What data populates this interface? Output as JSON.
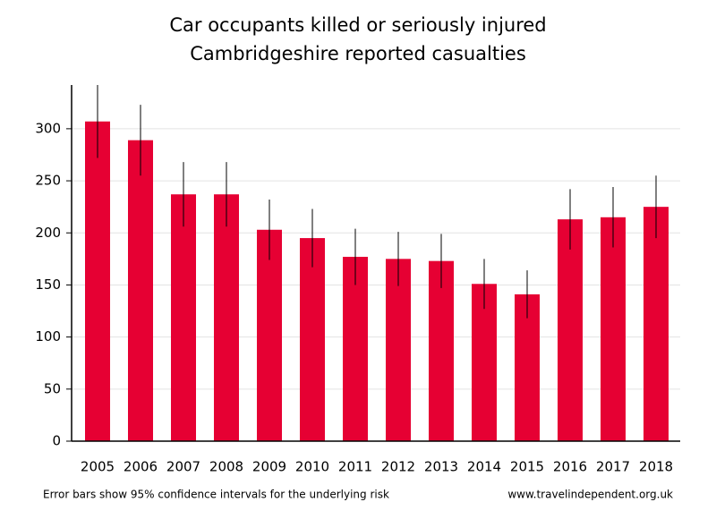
{
  "chart_data": {
    "type": "bar",
    "title": "Car occupants killed or seriously injured",
    "subtitle": "Cambridgeshire reported casualties",
    "categories": [
      "2005",
      "2006",
      "2007",
      "2008",
      "2009",
      "2010",
      "2011",
      "2012",
      "2013",
      "2014",
      "2015",
      "2016",
      "2017",
      "2018"
    ],
    "values": [
      307,
      289,
      237,
      237,
      203,
      195,
      177,
      175,
      173,
      151,
      141,
      213,
      215,
      225
    ],
    "errors": [
      35,
      34,
      31,
      31,
      29,
      28,
      27,
      26,
      26,
      24,
      23,
      29,
      29,
      30
    ],
    "color": "#e60033",
    "ylim": [
      0,
      342
    ],
    "yticks": [
      0,
      50,
      100,
      150,
      200,
      250,
      300
    ],
    "grid": true,
    "footnote": "Error bars show 95% confidence intervals for the underlying risk",
    "source": "www.travelindependent.org.uk"
  }
}
